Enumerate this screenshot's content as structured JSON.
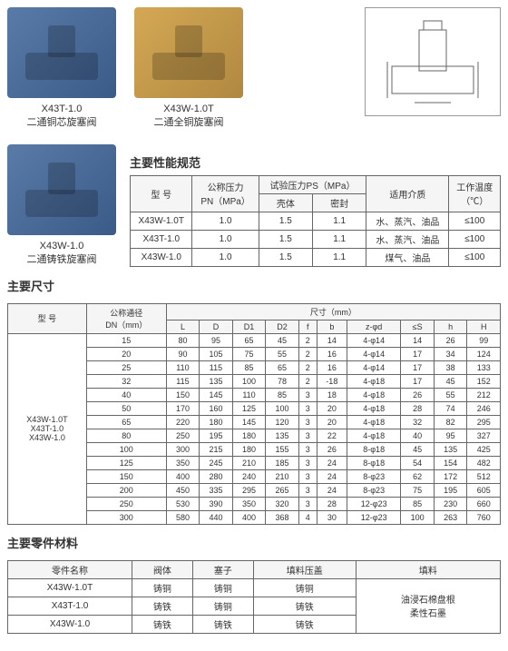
{
  "products": [
    {
      "model": "X43T-1.0",
      "desc": "二通铜芯旋塞阀",
      "color": "blue"
    },
    {
      "model": "X43W-1.0T",
      "desc": "二通全铜旋塞阀",
      "color": "gold"
    },
    {
      "model": "X43W-1.0",
      "desc": "二通铸铁旋塞阀",
      "color": "blue"
    }
  ],
  "spec": {
    "title": "主要性能规范",
    "headers": {
      "model": "型 号",
      "pn": "公称压力\nPN（MPa）",
      "test": "试验压力PS（MPa）",
      "shell": "壳体",
      "seal": "密封",
      "media": "适用介质",
      "temp": "工作温度\n（℃）"
    },
    "rows": [
      {
        "model": "X43W-1.0T",
        "pn": "1.0",
        "shell": "1.5",
        "seal": "1.1",
        "media": "水、蒸汽、油品",
        "temp": "≤100"
      },
      {
        "model": "X43T-1.0",
        "pn": "1.0",
        "shell": "1.5",
        "seal": "1.1",
        "media": "水、蒸汽、油品",
        "temp": "≤100"
      },
      {
        "model": "X43W-1.0",
        "pn": "1.0",
        "shell": "1.5",
        "seal": "1.1",
        "media": "煤气、油品",
        "temp": "≤100"
      }
    ]
  },
  "dim": {
    "title": "主要尺寸",
    "headers": {
      "model": "型 号",
      "dn": "公称通径\nDN（mm）",
      "size": "尺寸（mm）",
      "L": "L",
      "D": "D",
      "D1": "D1",
      "D2": "D2",
      "f": "f",
      "b": "b",
      "zphid": "z-φd",
      "cs": "≤S",
      "h": "h",
      "H": "H"
    },
    "models": "X43W-1.0T\nX43T-1.0\nX43W-1.0",
    "rows": [
      [
        "15",
        "80",
        "95",
        "65",
        "45",
        "2",
        "14",
        "4-φ14",
        "14",
        "26",
        "99"
      ],
      [
        "20",
        "90",
        "105",
        "75",
        "55",
        "2",
        "16",
        "4-φ14",
        "17",
        "34",
        "124"
      ],
      [
        "25",
        "110",
        "115",
        "85",
        "65",
        "2",
        "16",
        "4-φ14",
        "17",
        "38",
        "133"
      ],
      [
        "32",
        "115",
        "135",
        "100",
        "78",
        "2",
        "-18",
        "4-φ18",
        "17",
        "45",
        "152"
      ],
      [
        "40",
        "150",
        "145",
        "110",
        "85",
        "3",
        "18",
        "4-φ18",
        "26",
        "55",
        "212"
      ],
      [
        "50",
        "170",
        "160",
        "125",
        "100",
        "3",
        "20",
        "4-φ18",
        "28",
        "74",
        "246"
      ],
      [
        "65",
        "220",
        "180",
        "145",
        "120",
        "3",
        "20",
        "4-φ18",
        "32",
        "82",
        "295"
      ],
      [
        "80",
        "250",
        "195",
        "180",
        "135",
        "3",
        "22",
        "4-φ18",
        "40",
        "95",
        "327"
      ],
      [
        "100",
        "300",
        "215",
        "180",
        "155",
        "3",
        "26",
        "8-φ18",
        "45",
        "135",
        "425"
      ],
      [
        "125",
        "350",
        "245",
        "210",
        "185",
        "3",
        "24",
        "8-φ18",
        "54",
        "154",
        "482"
      ],
      [
        "150",
        "400",
        "280",
        "240",
        "210",
        "3",
        "24",
        "8-φ23",
        "62",
        "172",
        "512"
      ],
      [
        "200",
        "450",
        "335",
        "295",
        "265",
        "3",
        "24",
        "8-φ23",
        "75",
        "195",
        "605"
      ],
      [
        "250",
        "530",
        "390",
        "350",
        "320",
        "3",
        "28",
        "12-φ23",
        "85",
        "230",
        "660"
      ],
      [
        "300",
        "580",
        "440",
        "400",
        "368",
        "4",
        "30",
        "12-φ23",
        "100",
        "263",
        "760"
      ]
    ]
  },
  "mat": {
    "title": "主要零件材料",
    "headers": {
      "name": "零件名称",
      "body": "阀体",
      "plug": "塞子",
      "gland": "填料压盖",
      "pack": "填料"
    },
    "rows": [
      {
        "name": "X43W-1.0T",
        "body": "铸铜",
        "plug": "铸铜",
        "gland": "铸铜"
      },
      {
        "name": "X43T-1.0",
        "body": "铸铁",
        "plug": "铸铜",
        "gland": "铸铁"
      },
      {
        "name": "X43W-1.0",
        "body": "铸铁",
        "plug": "铸铁",
        "gland": "铸铁"
      }
    ],
    "packing": "油浸石棉盘根\n柔性石墨"
  }
}
